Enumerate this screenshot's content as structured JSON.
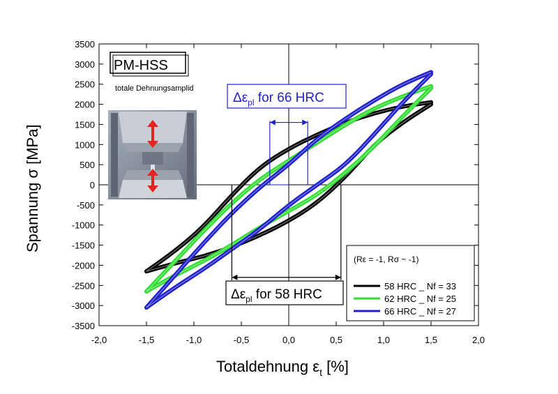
{
  "chart_data": {
    "type": "line",
    "title_box": "PM-HSS",
    "subtitle": "totale Dehnungsamplid",
    "xlabel": "Totaldehnung",
    "xlabel_symbol": "ε",
    "xlabel_sub": "t",
    "xlabel_unit": "[%]",
    "ylabel": "Spannung σ [MPa]",
    "xlim": [
      -2.0,
      2.0
    ],
    "ylim": [
      -3500,
      3500
    ],
    "x_ticks": [
      "-2,0",
      "-1,5",
      "-1,0",
      "-0,5",
      "0,0",
      "0,5",
      "1,0",
      "1,5",
      "2,0"
    ],
    "y_ticks": [
      "-3500",
      "-3000",
      "-2500",
      "-2000",
      "-1500",
      "-1000",
      "-500",
      "0",
      "500",
      "1000",
      "1500",
      "2000",
      "2500",
      "3000",
      "3500"
    ],
    "legend": {
      "header": "(Rε = -1, Rσ ~ -1)",
      "position": "bottom-right"
    },
    "series": [
      {
        "name": "58 HRC _ Nf = 33",
        "color": "#000000",
        "upper": [
          [
            -1.5,
            -2150
          ],
          [
            -1.2,
            -1650
          ],
          [
            -0.9,
            -1050
          ],
          [
            -0.6,
            -250
          ],
          [
            -0.3,
            450
          ],
          [
            0.0,
            900
          ],
          [
            0.3,
            1250
          ],
          [
            0.6,
            1550
          ],
          [
            0.9,
            1780
          ],
          [
            1.2,
            1950
          ],
          [
            1.5,
            2050
          ]
        ],
        "lower": [
          [
            1.5,
            2000
          ],
          [
            1.2,
            1550
          ],
          [
            0.9,
            1000
          ],
          [
            0.6,
            200
          ],
          [
            0.3,
            -450
          ],
          [
            0.0,
            -900
          ],
          [
            -0.3,
            -1250
          ],
          [
            -0.6,
            -1550
          ],
          [
            -0.9,
            -1780
          ],
          [
            -1.2,
            -1950
          ],
          [
            -1.5,
            -2150
          ]
        ]
      },
      {
        "name": "62 HRC _ Nf = 25",
        "color": "#33dd33",
        "upper": [
          [
            -1.5,
            -2650
          ],
          [
            -1.2,
            -1900
          ],
          [
            -0.9,
            -1150
          ],
          [
            -0.6,
            -450
          ],
          [
            -0.3,
            150
          ],
          [
            0.0,
            600
          ],
          [
            0.3,
            1050
          ],
          [
            0.6,
            1500
          ],
          [
            0.9,
            1900
          ],
          [
            1.2,
            2200
          ],
          [
            1.5,
            2450
          ]
        ],
        "lower": [
          [
            1.5,
            2400
          ],
          [
            1.2,
            1700
          ],
          [
            0.9,
            950
          ],
          [
            0.6,
            300
          ],
          [
            0.3,
            -250
          ],
          [
            0.0,
            -650
          ],
          [
            -0.3,
            -1050
          ],
          [
            -0.6,
            -1500
          ],
          [
            -0.9,
            -1900
          ],
          [
            -1.2,
            -2250
          ],
          [
            -1.5,
            -2650
          ]
        ]
      },
      {
        "name": "66 HRC _ Nf = 27",
        "color": "#2222cc",
        "upper": [
          [
            -1.5,
            -3050
          ],
          [
            -1.2,
            -2250
          ],
          [
            -0.9,
            -1450
          ],
          [
            -0.6,
            -700
          ],
          [
            -0.3,
            -50
          ],
          [
            0.0,
            500
          ],
          [
            0.3,
            1150
          ],
          [
            0.6,
            1650
          ],
          [
            0.9,
            2100
          ],
          [
            1.2,
            2500
          ],
          [
            1.5,
            2800
          ]
        ],
        "lower": [
          [
            1.5,
            2750
          ],
          [
            1.2,
            2050
          ],
          [
            0.9,
            1250
          ],
          [
            0.6,
            500
          ],
          [
            0.3,
            0
          ],
          [
            0.0,
            -500
          ],
          [
            -0.3,
            -1100
          ],
          [
            -0.6,
            -1600
          ],
          [
            -0.9,
            -2100
          ],
          [
            -1.2,
            -2550
          ],
          [
            -1.5,
            -3050
          ]
        ]
      }
    ],
    "annotations": {
      "delta_66": {
        "label_main": "Δε",
        "label_sub": "pl",
        "label_tail": " for 66 HRC",
        "color": "#2222cc",
        "x_range": [
          -0.2,
          0.2
        ],
        "y": 1550
      },
      "delta_58": {
        "label_main": "Δε",
        "label_sub": "pl",
        "label_tail": " for 58 HRC",
        "color": "#000000",
        "x_range": [
          -0.6,
          0.55
        ],
        "y": -2300
      }
    }
  }
}
